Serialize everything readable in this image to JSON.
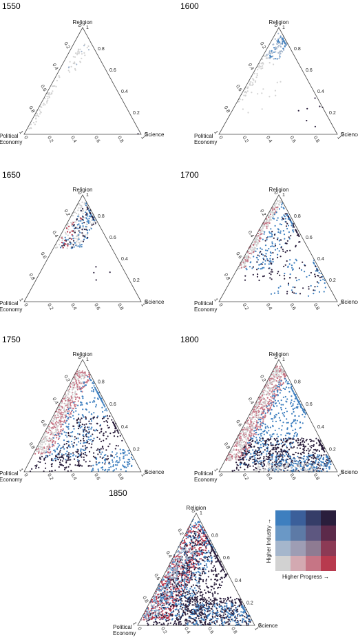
{
  "figure": {
    "vertex_labels": {
      "top": "Religion",
      "right": "Science",
      "left_line1": "Political",
      "left_line2": "Economy"
    },
    "right_edge_ticks": [
      "0.2",
      "0.4",
      "0.6",
      "0.8",
      "1",
      "0"
    ],
    "left_edge_ticks": [
      "0.2",
      "0.4",
      "0.6",
      "0.8",
      "0",
      "1"
    ],
    "bottom_edge_ticks": [
      "0.2",
      "0.4",
      "0.6",
      "0.8",
      "0",
      "1"
    ]
  },
  "legend": {
    "x_label": "Higher Progress →",
    "y_label": "Higher Industry →",
    "colors": [
      [
        "#3e7fbf",
        "#3b5f9a",
        "#353d68",
        "#2a1e3c"
      ],
      [
        "#6a98c6",
        "#5d7aa6",
        "#5d5780",
        "#5c2a4a"
      ],
      [
        "#a5b6cc",
        "#9e9db4",
        "#8e7b92",
        "#8c3a55"
      ],
      [
        "#d2d2d2",
        "#d3a9b1",
        "#c67585",
        "#b83a4e"
      ]
    ]
  },
  "chart_data": [
    {
      "title": "1550",
      "type": "scatter",
      "coordinates": "ternary",
      "axes": [
        "Religion",
        "Science",
        "Political Economy"
      ],
      "axis_range": [
        0,
        1
      ],
      "clusters": [
        {
          "religion": [
            0.55,
            0.85
          ],
          "science": [
            0.05,
            0.15
          ],
          "count": 30,
          "color": "#d2d2d2"
        },
        {
          "religion": [
            0.05,
            0.55
          ],
          "science": [
            0.0,
            0.05
          ],
          "count": 50,
          "color": "#d2d2d2"
        },
        {
          "religion": [
            0.6,
            0.85
          ],
          "science": [
            0.05,
            0.2
          ],
          "count": 6,
          "color": "#a5b6cc"
        },
        {
          "religion": [
            0.0,
            0.05
          ],
          "science": [
            0.9,
            0.98
          ],
          "count": 1,
          "color": "#2a1e3c"
        }
      ]
    },
    {
      "title": "1600",
      "type": "scatter",
      "coordinates": "ternary",
      "axes": [
        "Religion",
        "Science",
        "Political Economy"
      ],
      "axis_range": [
        0,
        1
      ],
      "clusters": [
        {
          "religion": [
            0.7,
            0.95
          ],
          "science": [
            0.02,
            0.15
          ],
          "count": 70,
          "color": "#a5b6cc"
        },
        {
          "religion": [
            0.7,
            0.95
          ],
          "science": [
            0.05,
            0.15
          ],
          "count": 30,
          "color": "#3e7fbf"
        },
        {
          "religion": [
            0.3,
            0.75
          ],
          "science": [
            0.0,
            0.05
          ],
          "count": 55,
          "color": "#d2d2d2"
        },
        {
          "religion": [
            0.2,
            0.7
          ],
          "science": [
            0.05,
            0.3
          ],
          "count": 18,
          "color": "#d2d2d2"
        },
        {
          "religion": [
            0.0,
            0.4
          ],
          "science": [
            0.55,
            0.95
          ],
          "count": 7,
          "color": "#2a1e3c"
        }
      ]
    },
    {
      "title": "1650",
      "type": "scatter",
      "coordinates": "ternary",
      "axes": [
        "Religion",
        "Science",
        "Political Economy"
      ],
      "axis_range": [
        0,
        1
      ],
      "clusters": [
        {
          "religion": [
            0.5,
            0.95
          ],
          "science": [
            0.0,
            0.25
          ],
          "count": 170,
          "color": "#d2d2d2"
        },
        {
          "religion": [
            0.5,
            0.95
          ],
          "science": [
            0.05,
            0.25
          ],
          "count": 90,
          "color": "#3e7fbf"
        },
        {
          "religion": [
            0.5,
            0.9
          ],
          "science": [
            0.05,
            0.25
          ],
          "count": 50,
          "color": "#2a1e3c"
        },
        {
          "religion": [
            0.5,
            0.8
          ],
          "science": [
            0.02,
            0.12
          ],
          "count": 20,
          "color": "#b83a4e"
        },
        {
          "religion": [
            0.15,
            0.35
          ],
          "science": [
            0.45,
            0.6
          ],
          "count": 4,
          "color": "#2a1e3c"
        }
      ]
    },
    {
      "title": "1700",
      "type": "scatter",
      "coordinates": "ternary",
      "axes": [
        "Religion",
        "Science",
        "Political Economy"
      ],
      "axis_range": [
        0,
        1
      ],
      "clusters": [
        {
          "religion": [
            0.3,
            0.95
          ],
          "science": [
            0.0,
            0.06
          ],
          "count": 220,
          "color": "#d2d2d2"
        },
        {
          "religion": [
            0.3,
            0.9
          ],
          "science": [
            0.0,
            0.06
          ],
          "count": 60,
          "color": "#c67585"
        },
        {
          "religion": [
            0.3,
            0.95
          ],
          "science": [
            0.05,
            0.3
          ],
          "count": 150,
          "color": "#3e7fbf"
        },
        {
          "religion": [
            0.2,
            0.9
          ],
          "science": [
            0.1,
            0.4
          ],
          "count": 90,
          "color": "#2a1e3c"
        },
        {
          "religion": [
            0.05,
            0.4
          ],
          "science": [
            0.4,
            0.85
          ],
          "count": 60,
          "color": "#3e7fbf"
        },
        {
          "religion": [
            0.05,
            0.4
          ],
          "science": [
            0.4,
            0.75
          ],
          "count": 30,
          "color": "#2a1e3c"
        }
      ]
    },
    {
      "title": "1750",
      "type": "scatter",
      "coordinates": "ternary",
      "axes": [
        "Religion",
        "Science",
        "Political Economy"
      ],
      "axis_range": [
        0,
        1
      ],
      "clusters": [
        {
          "religion": [
            0.15,
            0.9
          ],
          "science": [
            0.0,
            0.15
          ],
          "count": 300,
          "color": "#c67585"
        },
        {
          "religion": [
            0.15,
            0.9
          ],
          "science": [
            0.0,
            0.1
          ],
          "count": 200,
          "color": "#d2d2d2"
        },
        {
          "religion": [
            0.1,
            0.85
          ],
          "science": [
            0.1,
            0.45
          ],
          "count": 250,
          "color": "#3e7fbf"
        },
        {
          "religion": [
            0.05,
            0.5
          ],
          "science": [
            0.2,
            0.7
          ],
          "count": 220,
          "color": "#2a1e3c"
        },
        {
          "religion": [
            0.0,
            0.2
          ],
          "science": [
            0.55,
            0.9
          ],
          "count": 100,
          "color": "#3e7fbf"
        },
        {
          "religion": [
            0.0,
            0.15
          ],
          "science": [
            0.05,
            0.45
          ],
          "count": 60,
          "color": "#2a1e3c"
        }
      ]
    },
    {
      "title": "1800",
      "type": "scatter",
      "coordinates": "ternary",
      "axes": [
        "Religion",
        "Science",
        "Political Economy"
      ],
      "axis_range": [
        0,
        1
      ],
      "clusters": [
        {
          "religion": [
            0.1,
            0.95
          ],
          "science": [
            0.0,
            0.15
          ],
          "count": 450,
          "color": "#c67585"
        },
        {
          "religion": [
            0.1,
            0.95
          ],
          "science": [
            0.0,
            0.1
          ],
          "count": 250,
          "color": "#d2d2d2"
        },
        {
          "religion": [
            0.05,
            0.85
          ],
          "science": [
            0.1,
            0.5
          ],
          "count": 400,
          "color": "#3e7fbf"
        },
        {
          "religion": [
            0.0,
            0.3
          ],
          "science": [
            0.1,
            0.9
          ],
          "count": 500,
          "color": "#2a1e3c"
        },
        {
          "religion": [
            0.0,
            0.15
          ],
          "science": [
            0.4,
            0.92
          ],
          "count": 200,
          "color": "#3e7fbf"
        },
        {
          "religion": [
            0.0,
            0.08
          ],
          "science": [
            0.3,
            0.8
          ],
          "count": 100,
          "color": "#d2d2d2"
        }
      ]
    },
    {
      "title": "1850",
      "type": "scatter",
      "coordinates": "ternary",
      "axes": [
        "Religion",
        "Science",
        "Political Economy"
      ],
      "axis_range": [
        0,
        1
      ],
      "clusters": [
        {
          "religion": [
            0.05,
            0.9
          ],
          "science": [
            0.0,
            0.25
          ],
          "count": 600,
          "color": "#b83a4e"
        },
        {
          "religion": [
            0.05,
            0.95
          ],
          "science": [
            0.0,
            0.35
          ],
          "count": 500,
          "color": "#3e7fbf"
        },
        {
          "religion": [
            0.0,
            0.85
          ],
          "science": [
            0.05,
            0.55
          ],
          "count": 600,
          "color": "#2a1e3c"
        },
        {
          "religion": [
            0.0,
            0.25
          ],
          "science": [
            0.3,
            0.95
          ],
          "count": 400,
          "color": "#2a1e3c"
        },
        {
          "religion": [
            0.0,
            0.2
          ],
          "science": [
            0.4,
            0.95
          ],
          "count": 200,
          "color": "#3e7fbf"
        },
        {
          "religion": [
            0.05,
            0.7
          ],
          "science": [
            0.0,
            0.15
          ],
          "count": 200,
          "color": "#a5b6cc"
        }
      ]
    }
  ]
}
